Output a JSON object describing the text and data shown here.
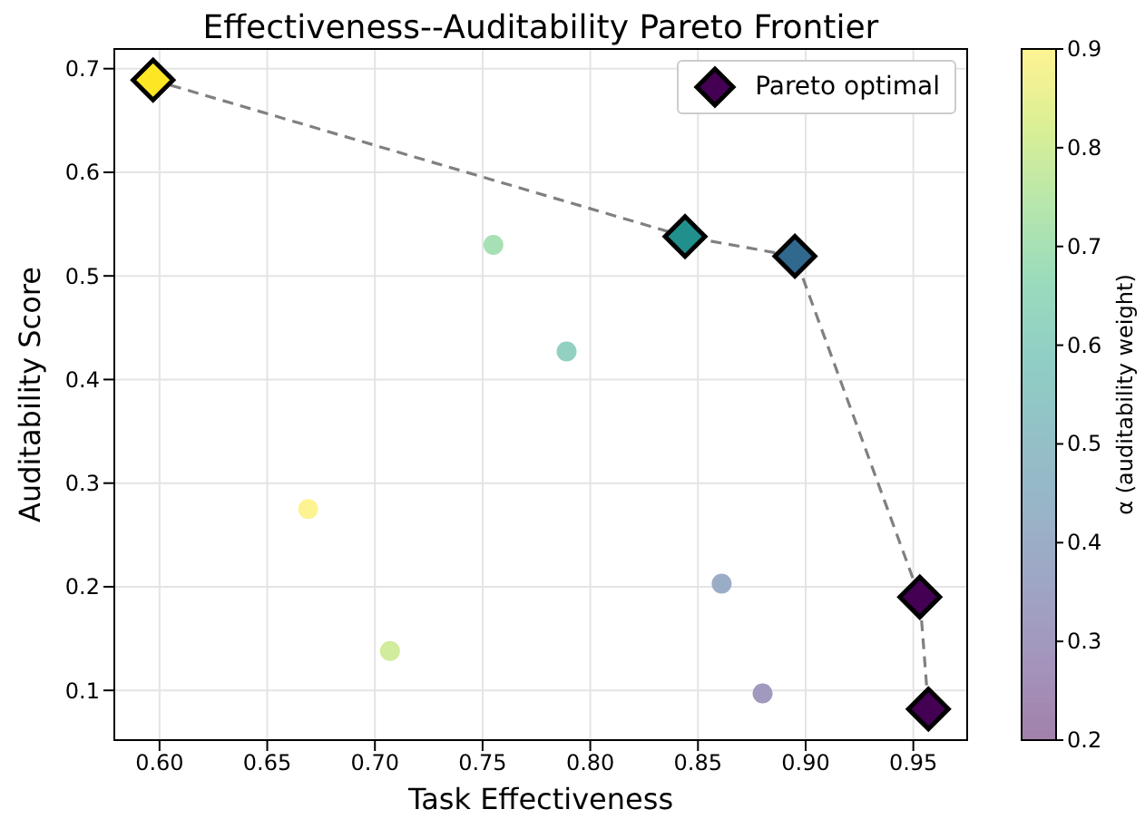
{
  "chart_data": {
    "type": "scatter",
    "title": "Effectiveness--Auditability Pareto Frontier",
    "xlabel": "Task Effectiveness",
    "ylabel": "Auditability Score",
    "clabel": "α (auditability weight)",
    "xlim": [
      0.579,
      0.975
    ],
    "xticks": [
      {
        "value": 0.6,
        "label": "0.60"
      },
      {
        "value": 0.65,
        "label": "0.65"
      },
      {
        "value": 0.7,
        "label": "0.70"
      },
      {
        "value": 0.75,
        "label": "0.75"
      },
      {
        "value": 0.8,
        "label": "0.80"
      },
      {
        "value": 0.85,
        "label": "0.85"
      },
      {
        "value": 0.9,
        "label": "0.90"
      },
      {
        "value": 0.95,
        "label": "0.95"
      }
    ],
    "ylim": [
      0.052,
      0.719
    ],
    "yticks": [
      0.1,
      0.2,
      0.3,
      0.4,
      0.5,
      0.6,
      0.7
    ],
    "clim": [
      0.2,
      0.9
    ],
    "cticks": [
      0.2,
      0.3,
      0.4,
      0.5,
      0.6,
      0.7,
      0.8,
      0.9
    ],
    "grid": true,
    "legend": "top right",
    "series": [
      {
        "type": "line",
        "color": "#808080",
        "line_style": "dashed",
        "marker": "none",
        "x": [
          0.597,
          0.844,
          0.895,
          0.953,
          0.957
        ],
        "values": [
          0.689,
          0.538,
          0.519,
          0.19,
          0.082
        ]
      },
      {
        "type": "scatter",
        "marker": "circle",
        "x": [
          0.755,
          0.789,
          0.669,
          0.707,
          0.861,
          0.88
        ],
        "values": [
          0.53,
          0.427,
          0.275,
          0.138,
          0.203,
          0.097
        ],
        "colors": [
          "#a7e0b5",
          "#91d0c3",
          "#fef392",
          "#d0ec9c",
          "#9badc6",
          "#a299be"
        ]
      },
      {
        "type": "scatter",
        "name": "Pareto optimal",
        "color": "#440154",
        "marker": "diamond",
        "x": [
          0.597,
          0.844,
          0.895,
          0.953,
          0.957
        ],
        "values": [
          0.689,
          0.538,
          0.519,
          0.19,
          0.082
        ],
        "colors": [
          "#fde725",
          "#21908d",
          "#31688e",
          "#440154",
          "#440154"
        ]
      }
    ]
  }
}
